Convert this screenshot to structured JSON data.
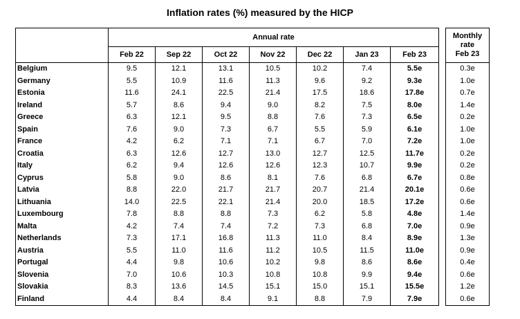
{
  "title": "Inflation rates (%) measured by the HICP",
  "annual_header": "Annual rate",
  "monthly_header": "Monthly rate",
  "columns": [
    "Feb 22",
    "Sep 22",
    "Oct 22",
    "Nov 22",
    "Dec 22",
    "Jan 23",
    "Feb 23"
  ],
  "monthly_column": "Feb 23",
  "rows": [
    {
      "country": "Belgium",
      "values": [
        "9.5",
        "12.1",
        "13.1",
        "10.5",
        "10.2",
        "7.4",
        "5.5e"
      ],
      "monthly": "0.3e"
    },
    {
      "country": "Germany",
      "values": [
        "5.5",
        "10.9",
        "11.6",
        "11.3",
        "9.6",
        "9.2",
        "9.3e"
      ],
      "monthly": "1.0e"
    },
    {
      "country": "Estonia",
      "values": [
        "11.6",
        "24.1",
        "22.5",
        "21.4",
        "17.5",
        "18.6",
        "17.8e"
      ],
      "monthly": "0.7e"
    },
    {
      "country": "Ireland",
      "values": [
        "5.7",
        "8.6",
        "9.4",
        "9.0",
        "8.2",
        "7.5",
        "8.0e"
      ],
      "monthly": "1.4e"
    },
    {
      "country": "Greece",
      "values": [
        "6.3",
        "12.1",
        "9.5",
        "8.8",
        "7.6",
        "7.3",
        "6.5e"
      ],
      "monthly": "0.2e"
    },
    {
      "country": "Spain",
      "values": [
        "7.6",
        "9.0",
        "7.3",
        "6.7",
        "5.5",
        "5.9",
        "6.1e"
      ],
      "monthly": "1.0e"
    },
    {
      "country": "France",
      "values": [
        "4.2",
        "6.2",
        "7.1",
        "7.1",
        "6.7",
        "7.0",
        "7.2e"
      ],
      "monthly": "1.0e"
    },
    {
      "country": "Croatia",
      "values": [
        "6.3",
        "12.6",
        "12.7",
        "13.0",
        "12.7",
        "12.5",
        "11.7e"
      ],
      "monthly": "0.2e"
    },
    {
      "country": "Italy",
      "values": [
        "6.2",
        "9.4",
        "12.6",
        "12.6",
        "12.3",
        "10.7",
        "9.9e"
      ],
      "monthly": "0.2e"
    },
    {
      "country": "Cyprus",
      "values": [
        "5.8",
        "9.0",
        "8.6",
        "8.1",
        "7.6",
        "6.8",
        "6.7e"
      ],
      "monthly": "0.8e"
    },
    {
      "country": "Latvia",
      "values": [
        "8.8",
        "22.0",
        "21.7",
        "21.7",
        "20.7",
        "21.4",
        "20.1e"
      ],
      "monthly": "0.6e"
    },
    {
      "country": "Lithuania",
      "values": [
        "14.0",
        "22.5",
        "22.1",
        "21.4",
        "20.0",
        "18.5",
        "17.2e"
      ],
      "monthly": "0.6e"
    },
    {
      "country": "Luxembourg",
      "values": [
        "7.8",
        "8.8",
        "8.8",
        "7.3",
        "6.2",
        "5.8",
        "4.8e"
      ],
      "monthly": "1.4e"
    },
    {
      "country": "Malta",
      "values": [
        "4.2",
        "7.4",
        "7.4",
        "7.2",
        "7.3",
        "6.8",
        "7.0e"
      ],
      "monthly": "0.9e"
    },
    {
      "country": "Netherlands",
      "values": [
        "7.3",
        "17.1",
        "16.8",
        "11.3",
        "11.0",
        "8.4",
        "8.9e"
      ],
      "monthly": "1.3e"
    },
    {
      "country": "Austria",
      "values": [
        "5.5",
        "11.0",
        "11.6",
        "11.2",
        "10.5",
        "11.5",
        "11.0e"
      ],
      "monthly": "0.9e"
    },
    {
      "country": "Portugal",
      "values": [
        "4.4",
        "9.8",
        "10.6",
        "10.2",
        "9.8",
        "8.6",
        "8.6e"
      ],
      "monthly": "0.4e"
    },
    {
      "country": "Slovenia",
      "values": [
        "7.0",
        "10.6",
        "10.3",
        "10.8",
        "10.8",
        "9.9",
        "9.4e"
      ],
      "monthly": "0.6e"
    },
    {
      "country": "Slovakia",
      "values": [
        "8.3",
        "13.6",
        "14.5",
        "15.1",
        "15.0",
        "15.1",
        "15.5e"
      ],
      "monthly": "1.2e"
    },
    {
      "country": "Finland",
      "values": [
        "4.4",
        "8.4",
        "8.4",
        "9.1",
        "8.8",
        "7.9",
        "7.9e"
      ],
      "monthly": "0.6e"
    }
  ]
}
